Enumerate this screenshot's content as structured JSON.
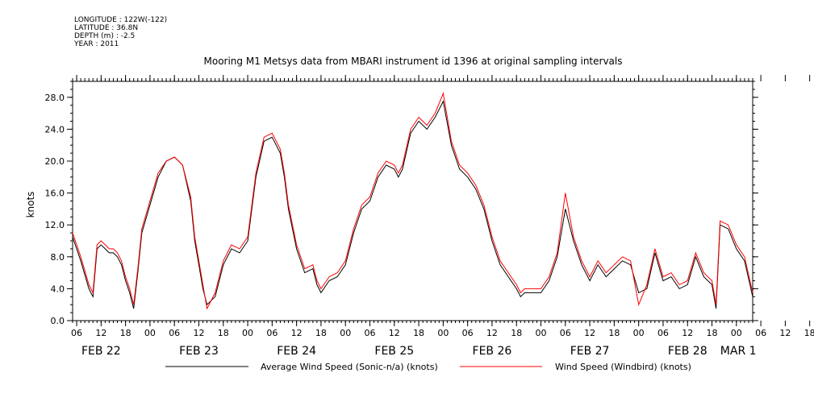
{
  "header": {
    "longitude": "LONGITUDE : 122W(-122)",
    "latitude": "LATITUDE : 36.8N",
    "depth": "DEPTH (m) : -2.5",
    "year": "YEAR : 2011"
  },
  "chart_data": {
    "type": "line",
    "title": "Mooring M1 Metsys data from MBARI instrument id 1396 at original sampling intervals",
    "ylabel": "knots",
    "xlabel": "",
    "ylim": [
      0,
      30
    ],
    "yticks": [
      "0.0",
      "4.0",
      "8.0",
      "12.0",
      "16.0",
      "20.0",
      "24.0",
      "28.0"
    ],
    "x_unit": "hours since FEB 22 00:00 (2011)",
    "xlim": [
      5,
      172
    ],
    "hour_ticks": [
      "06",
      "12",
      "18",
      "00",
      "06",
      "12",
      "18",
      "00",
      "06",
      "12",
      "18",
      "00",
      "06",
      "12",
      "18",
      "00",
      "06",
      "12",
      "18",
      "00",
      "06",
      "12",
      "18",
      "00",
      "06",
      "12",
      "18",
      "00",
      "06",
      "12",
      "18",
      "00",
      "06"
    ],
    "day_labels": [
      "FEB 22",
      "FEB 23",
      "FEB 24",
      "FEB 25",
      "FEB 26",
      "FEB 27",
      "FEB 28",
      "MAR 1"
    ],
    "legend": "bottom",
    "grid": false,
    "series": [
      {
        "name": "Average Wind Speed (Sonic-n/a) (knots)",
        "color": "#000000",
        "x": [
          5,
          7,
          9,
          10,
          11,
          12,
          13,
          14,
          15,
          16,
          17,
          18,
          19,
          20,
          21,
          22,
          24,
          26,
          28,
          30,
          32,
          34,
          35,
          36,
          37,
          38,
          40,
          42,
          44,
          46,
          48,
          50,
          52,
          54,
          55,
          56,
          57,
          58,
          60,
          62,
          64,
          65,
          66,
          68,
          70,
          72,
          74,
          76,
          78,
          80,
          82,
          84,
          85,
          86,
          88,
          90,
          92,
          94,
          96,
          98,
          100,
          102,
          104,
          106,
          108,
          110,
          112,
          114,
          115,
          116,
          118,
          120,
          122,
          124,
          126,
          128,
          130,
          132,
          134,
          136,
          138,
          140,
          142,
          144,
          146,
          148,
          150,
          152,
          154,
          156,
          158,
          160,
          162,
          163,
          164,
          166,
          168,
          170,
          172
        ],
        "y": [
          10.5,
          7.5,
          4,
          3,
          9,
          9.5,
          9,
          8.5,
          8.5,
          8,
          7,
          5,
          3.5,
          1.5,
          6,
          11,
          14.5,
          18,
          20,
          20.5,
          19.5,
          15,
          10,
          7,
          4,
          2,
          3,
          7,
          9,
          8.5,
          10,
          18,
          22.5,
          23,
          22,
          21,
          18,
          14,
          9,
          6,
          6.5,
          4.5,
          3.5,
          5,
          5.5,
          7,
          11,
          14,
          15,
          18,
          19.5,
          19,
          18,
          19,
          23.5,
          25,
          24,
          25.5,
          27.5,
          22,
          19,
          18,
          16.5,
          14,
          10,
          7,
          5.5,
          4,
          3,
          3.5,
          3.5,
          3.5,
          5,
          8,
          14,
          10,
          7,
          5,
          7,
          5.5,
          6.5,
          7.5,
          7,
          3.5,
          4,
          8.5,
          5,
          5.5,
          4,
          4.5,
          8,
          5.5,
          4.5,
          1.5,
          12,
          11.5,
          9,
          7.5,
          3
        ]
      },
      {
        "name": "Wind Speed (Windbird) (knots)",
        "color": "#ff0000",
        "x": [
          5,
          7,
          9,
          10,
          11,
          12,
          13,
          14,
          15,
          16,
          17,
          18,
          19,
          20,
          21,
          22,
          24,
          26,
          28,
          30,
          32,
          34,
          35,
          36,
          37,
          38,
          40,
          42,
          44,
          46,
          48,
          50,
          52,
          54,
          55,
          56,
          57,
          58,
          60,
          62,
          64,
          65,
          66,
          68,
          70,
          72,
          74,
          76,
          78,
          80,
          82,
          84,
          85,
          86,
          88,
          90,
          92,
          94,
          96,
          98,
          100,
          102,
          104,
          106,
          108,
          110,
          112,
          114,
          115,
          116,
          118,
          120,
          122,
          124,
          126,
          128,
          130,
          132,
          134,
          136,
          138,
          140,
          142,
          144,
          146,
          148,
          150,
          152,
          154,
          156,
          158,
          160,
          162,
          163,
          164,
          166,
          168,
          170,
          172
        ],
        "y": [
          11,
          8,
          4.5,
          3.5,
          9.5,
          10,
          9.5,
          9,
          9,
          8.5,
          7.5,
          5.5,
          4,
          2,
          6.5,
          11.5,
          15,
          18.5,
          20,
          20.5,
          19.5,
          15.5,
          10.5,
          7.5,
          4.5,
          1.5,
          3.5,
          7.5,
          9.5,
          9,
          10.5,
          18.5,
          23,
          23.5,
          22.5,
          21.5,
          18.5,
          14.5,
          9.5,
          6.5,
          7,
          5,
          4,
          5.5,
          6,
          7.5,
          11.5,
          14.5,
          15.5,
          18.5,
          20,
          19.5,
          18.5,
          19.5,
          24,
          25.5,
          24.5,
          26,
          28.5,
          22.5,
          19.5,
          18.5,
          17,
          14.5,
          10.5,
          7.5,
          6,
          4.5,
          3.5,
          4,
          4,
          4,
          5.5,
          8.5,
          16,
          10.5,
          7.5,
          5.5,
          7.5,
          6,
          7,
          8,
          7.5,
          2,
          4.5,
          9,
          5.5,
          6,
          4.5,
          5,
          8.5,
          6,
          5,
          2,
          12.5,
          12,
          9.5,
          8,
          3.5
        ]
      }
    ]
  }
}
